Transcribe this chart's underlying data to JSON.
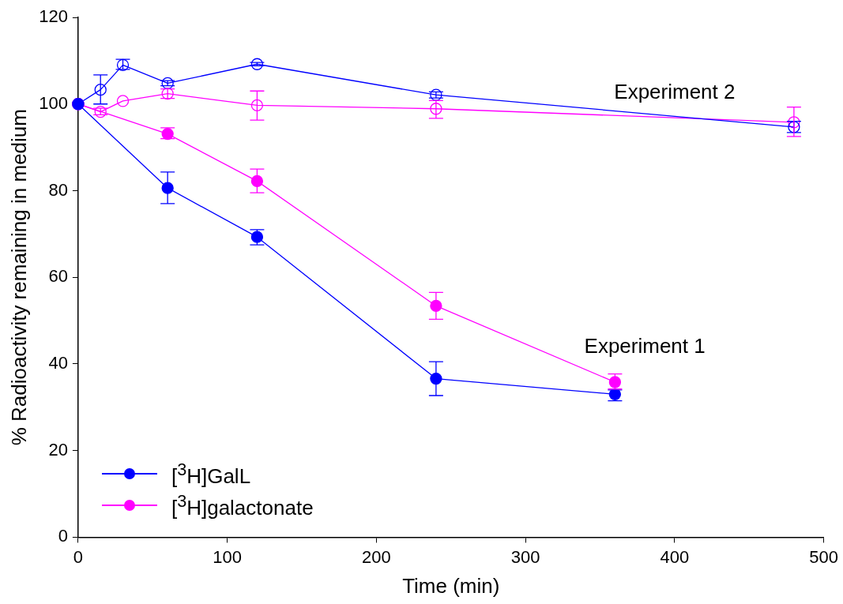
{
  "chart_data": {
    "type": "line",
    "xlabel": "Time (min)",
    "ylabel": "% Radioactivity remaining in medium",
    "xlim": [
      0,
      500
    ],
    "ylim": [
      0,
      120
    ],
    "xticks": [
      0,
      100,
      200,
      300,
      400,
      500
    ],
    "yticks": [
      0,
      20,
      40,
      60,
      80,
      100,
      120
    ],
    "grid": false,
    "legend": "bottom left",
    "line_style": "solid",
    "annotations": [
      "Experiment 2",
      "Experiment 1"
    ],
    "series": [
      {
        "name": "[$^{3}$H]GalL",
        "color": "#0000ff",
        "marker": "circle",
        "x": [
          0,
          60,
          120,
          240,
          360
        ],
        "values": [
          100,
          80.6,
          69.3,
          36.6,
          33.0
        ],
        "errors": [
          null,
          [
            77,
            84.3
          ],
          [
            67.5,
            71
          ],
          [
            32.7,
            40.5
          ],
          [
            31.5,
            34
          ]
        ]
      },
      {
        "name": "[$^{3}$H]galactonate",
        "color": "#ff00ff",
        "marker": "circle",
        "x": [
          0,
          60,
          120,
          240,
          360
        ],
        "values": [
          100,
          93.1,
          82.2,
          53.4,
          35.8
        ],
        "errors": [
          null,
          [
            92,
            94.5
          ],
          [
            79.5,
            85
          ],
          [
            50.3,
            56.5
          ],
          [
            34.2,
            37.7
          ]
        ]
      },
      {
        "color": "#0000ff",
        "marker": "circle-open",
        "x": [
          0,
          15,
          30,
          60,
          120,
          240,
          480
        ],
        "values": [
          100,
          103.3,
          109,
          104.8,
          109.2,
          102.1,
          94.7
        ],
        "errors": [
          null,
          [
            100,
            106.7
          ],
          [
            108,
            110.3
          ],
          [
            104.2,
            105.4
          ],
          [
            108.8,
            109.6
          ],
          [
            101.4,
            102.8
          ],
          [
            93.4,
            96
          ]
        ]
      },
      {
        "color": "#ff00ff",
        "marker": "circle-open",
        "x": [
          0,
          15,
          30,
          60,
          120,
          240,
          480
        ],
        "values": [
          100,
          98.2,
          100.7,
          102.4,
          99.7,
          98.9,
          95.8
        ],
        "errors": [
          null,
          [
            97.5,
            99
          ],
          [
            null,
            null
          ],
          [
            101.3,
            103.5
          ],
          [
            96.3,
            103
          ],
          [
            96.7,
            100.8
          ],
          [
            92.5,
            99.3
          ]
        ]
      }
    ]
  }
}
